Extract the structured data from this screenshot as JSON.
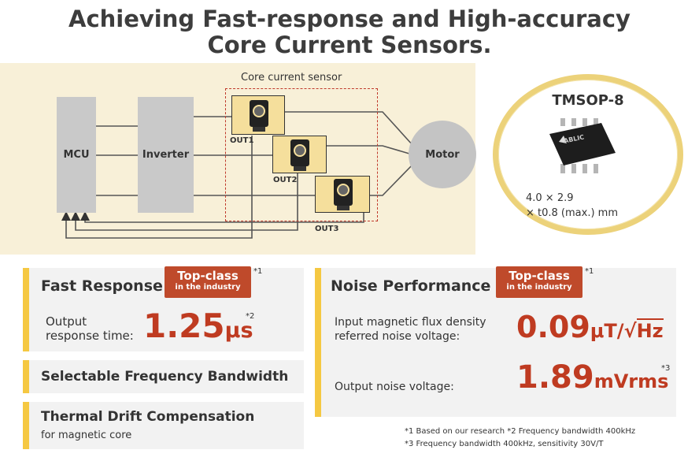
{
  "title": {
    "line1": "Achieving Fast-response and High-accuracy",
    "line2": "Core Current Sensors."
  },
  "diagram": {
    "sensor_group_label": "Core current sensor",
    "mcu_label": "MCU",
    "inverter_label": "Inverter",
    "motor_label": "Motor",
    "outputs": [
      "OUT1",
      "OUT2",
      "OUT3"
    ]
  },
  "package": {
    "name": "TMSOP-8",
    "brand": "ABLIC",
    "dim_line1": "4.0 × 2.9",
    "dim_line2": "× t0.8 (max.) mm"
  },
  "fast_response": {
    "heading": "Fast Response",
    "badge_line1": "Top-class",
    "badge_line2": "in the industry",
    "badge_note": "*1",
    "label_line1": "Output",
    "label_line2": "response time:",
    "value": "1.25",
    "unit": "μs",
    "note": "*2"
  },
  "features": {
    "bandwidth": "Selectable Frequency Bandwidth",
    "thermal": "Thermal Drift Compensation",
    "thermal_sub": "for magnetic core"
  },
  "noise": {
    "heading": "Noise Performance",
    "badge_line1": "Top-class",
    "badge_line2": "in the industry",
    "badge_note": "*1",
    "flux_label_line1": "Input magnetic flux density",
    "flux_label_line2": "referred noise voltage:",
    "flux_value": "0.09",
    "flux_unit_a": "μT/",
    "flux_unit_b": "Hz",
    "output_label": "Output noise voltage:",
    "output_value": "1.89",
    "output_unit": "mVrms",
    "output_note": "*3"
  },
  "footnotes": {
    "line1": "*1 Based on our research  *2  Frequency bandwidth 400kHz",
    "line2": "*3 Frequency bandwidth 400kHz, sensitivity 30V/T"
  },
  "colors": {
    "accent_red": "#bf3b21",
    "accent_yellow": "#f5c842",
    "diagram_bg": "#f8f0d8"
  }
}
